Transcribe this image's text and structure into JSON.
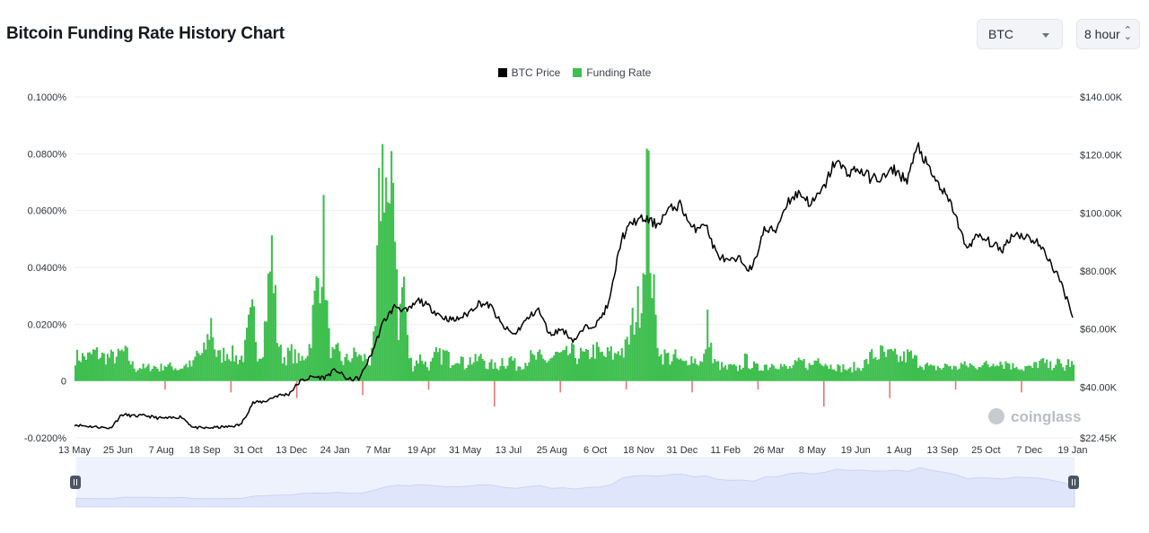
{
  "header": {
    "title": "Bitcoin Funding Rate History Chart",
    "coin_select": "BTC",
    "interval_select": "8 hour"
  },
  "watermark": "coinglass",
  "colors": {
    "price_line": "#000000",
    "funding_positive": "#3fbf4f",
    "funding_negative": "#e8777a",
    "navigator_fill": "#dfe6fb",
    "navigator_bg": "#eef2fd",
    "gridline": "#eeeeee"
  },
  "chart_data": {
    "type": "line",
    "title": "Bitcoin Funding Rate History Chart",
    "legend_position": "top-center",
    "grid": true,
    "legend": [
      {
        "name": "BTC Price",
        "color": "#000000"
      },
      {
        "name": "Funding Rate",
        "color": "#3fbf4f"
      }
    ],
    "x_tick_labels": [
      "13 May",
      "25 Jun",
      "7 Aug",
      "18 Sep",
      "31 Oct",
      "13 Dec",
      "24 Jan",
      "7 Mar",
      "19 Apr",
      "31 May",
      "13 Jul",
      "25 Aug",
      "6 Oct",
      "18 Nov",
      "31 Dec",
      "11 Feb",
      "26 Mar",
      "8 May",
      "19 Jun",
      "1 Aug",
      "13 Sep",
      "25 Oct",
      "7 Dec",
      "19 Jan"
    ],
    "left_axis": {
      "label": "Funding Rate",
      "ticks": [
        -0.0002,
        0,
        0.0002,
        0.0004,
        0.0006,
        0.0008,
        0.001
      ],
      "tick_labels": [
        "-0.0200%",
        "0",
        "0.0200%",
        "0.0400%",
        "0.0600%",
        "0.0800%",
        "0.1000%"
      ],
      "range": [
        -0.0002,
        0.001
      ]
    },
    "right_axis": {
      "label": "BTC Price",
      "ticks": [
        22450,
        40000,
        60000,
        80000,
        100000,
        120000,
        140000
      ],
      "tick_labels": [
        "$22.45K",
        "$40.00K",
        "$60.00K",
        "$80.00K",
        "$100.00K",
        "$120.00K",
        "$140.00K"
      ],
      "range": [
        22450,
        140000
      ]
    },
    "series": [
      {
        "name": "BTC Price",
        "axis": "right",
        "type": "line",
        "values": [
          27000,
          26500,
          26200,
          25800,
          30500,
          30000,
          30100,
          29300,
          29200,
          29800,
          26000,
          25800,
          26100,
          26300,
          27000,
          34500,
          35000,
          37000,
          37500,
          42000,
          43500,
          43200,
          46000,
          42500,
          43000,
          51500,
          62500,
          68000,
          66000,
          70000,
          67000,
          64000,
          63000,
          65000,
          69000,
          68000,
          61000,
          58000,
          63000,
          67000,
          58000,
          60000,
          56000,
          60500,
          62000,
          69000,
          91000,
          97000,
          98000,
          96000,
          101000,
          103000,
          94000,
          97000,
          86000,
          83000,
          84000,
          80000,
          94000,
          94000,
          104000,
          107000,
          103000,
          108000,
          118000,
          114000,
          115000,
          112000,
          112000,
          115000,
          111000,
          123000,
          114000,
          108000,
          101000,
          88000,
          92000,
          90000,
          87000,
          93000,
          92000,
          90000,
          84000,
          76000,
          65000
        ]
      },
      {
        "name": "Funding Rate",
        "axis": "left",
        "type": "bar",
        "values": [
          0.0001,
          0.0001,
          0.0001,
          0.0001,
          0.00012,
          0.00011,
          0.0001,
          0.0001,
          0.0001,
          0.0001,
          0.00012,
          0.00011,
          7e-05,
          5e-05,
          6e-05,
          5e-05,
          6e-05,
          6e-05,
          5e-05,
          7e-05,
          6e-05,
          6e-05,
          5e-05,
          6e-05,
          7e-05,
          6e-05,
          0.00012,
          0.0001,
          0.00015,
          0.00025,
          0.00011,
          0.0001,
          0.00012,
          0.00012,
          0.0001,
          9e-05,
          0.00011,
          0.00022,
          0.00028,
          0.0001,
          0.00015,
          0.00035,
          0.00055,
          0.0002,
          0.0001,
          0.0001,
          0.00012,
          0.0001,
          8e-05,
          0.00011,
          0.00015,
          0.00032,
          0.00045,
          0.0006,
          0.00018,
          0.0001,
          0.00012,
          8e-05,
          9e-05,
          0.0001,
          0.00012,
          9e-05,
          0.0001,
          7e-05,
          0.0002,
          0.00082,
          0.00095,
          0.0006,
          0.00088,
          0.0002,
          0.00045,
          0.00012,
          6e-05,
          9e-05,
          0.0001,
          6e-05,
          7e-05,
          0.00011,
          0.0001,
          0.00012,
          8e-05,
          0.0001,
          0.00011,
          6e-05,
          9e-05,
          8e-05,
          9e-05,
          0.0001,
          6e-05,
          7e-05,
          5e-05,
          9e-05,
          7e-05,
          0.0001,
          6e-05,
          7e-05,
          8e-05,
          0.0001,
          9e-05,
          0.0001,
          8e-05,
          9e-05,
          0.0001,
          0.00011,
          0.0001,
          0.00011,
          0.00012,
          0.0001,
          0.00011,
          0.0001,
          0.00012,
          0.00013,
          0.00011,
          0.0001,
          0.00012,
          0.0001,
          0.00014,
          0.00012,
          0.00016,
          0.00025,
          0.0003,
          0.0004,
          0.00088,
          0.00045,
          0.0002,
          0.0001,
          0.00011,
          9e-05,
          0.0001,
          8e-05,
          7e-05,
          0.0001,
          9e-05,
          8e-05,
          7e-05,
          0.00025,
          8e-05,
          7e-05,
          6e-05,
          5e-05,
          6e-05,
          5e-05,
          6e-05,
          9e-05,
          7e-05,
          6e-05,
          5e-05,
          7e-05,
          6e-05,
          8e-05,
          7e-05,
          6e-05,
          5e-05,
          6e-05,
          7e-05,
          8e-05,
          7e-05,
          6e-05,
          9e-05,
          0.0001,
          8e-05,
          6e-05,
          7e-05,
          5e-05,
          6e-05,
          4e-05,
          6e-05,
          5e-05,
          7e-05,
          8e-05,
          0.00011,
          0.0001,
          0.00012,
          0.0001,
          0.00011,
          0.0001,
          9e-05,
          0.0001,
          0.00011,
          9e-05,
          8e-05,
          7e-05,
          6e-05,
          5e-05,
          6e-05,
          5e-05,
          7e-05,
          6e-05,
          5e-05,
          7e-05,
          6e-05,
          7e-05,
          5e-05,
          8e-05,
          7e-05,
          6e-05,
          8e-05,
          9e-05,
          7e-05,
          8e-05,
          6e-05,
          7e-05,
          5e-05,
          6e-05,
          5e-05,
          7e-05,
          8e-05,
          7e-05,
          6e-05,
          8e-05,
          7e-05,
          5e-05,
          8e-05,
          6e-05
        ]
      }
    ],
    "negative_funding_dips": [
      -3e-05,
      -4e-05,
      -6e-05,
      -5e-05,
      -3e-05,
      -9e-05,
      -4e-05,
      -3e-05,
      -4e-05,
      -3e-05,
      -9e-05,
      -6e-05,
      -3e-05,
      -4e-05
    ]
  }
}
